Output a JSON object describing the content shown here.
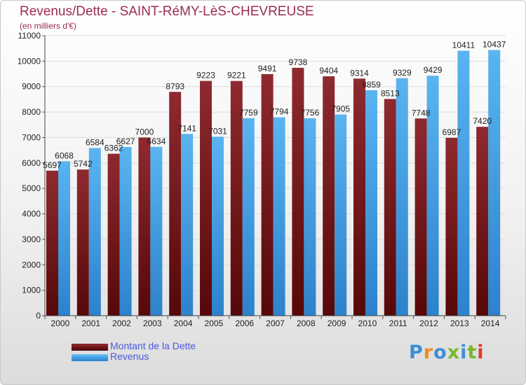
{
  "title": "Revenus/Dette - SAINT-RéMY-LèS-CHEVREUSE",
  "subtitle": "(en milliers d'€)",
  "colors": {
    "dette": "#7a1a1f",
    "revenus": "#4aa3e8",
    "title": "#9b2c52",
    "legend_text": "#4a5ae0"
  },
  "chart_data": {
    "type": "bar",
    "categories": [
      "2000",
      "2001",
      "2002",
      "2003",
      "2004",
      "2005",
      "2006",
      "2007",
      "2008",
      "2009",
      "2010",
      "2011",
      "2012",
      "2013",
      "2014"
    ],
    "series": [
      {
        "name": "Montant de la Dette",
        "values": [
          5697,
          5742,
          6362,
          7000,
          8793,
          9223,
          9221,
          9491,
          9738,
          9404,
          9314,
          8513,
          7748,
          6987,
          7420
        ],
        "labels": [
          "5697",
          "5742",
          "6362",
          "7000",
          "8793",
          "9223",
          "9221",
          "9491",
          "9738",
          "9404",
          "9314",
          "8513",
          "7748",
          "6987",
          "7420"
        ]
      },
      {
        "name": "Revenus",
        "values": [
          6068,
          6584,
          6627,
          6634,
          7141,
          7031,
          7759,
          7794,
          7756,
          7905,
          8859,
          9329,
          9429,
          10411,
          10437
        ],
        "labels": [
          "6068",
          "6584",
          "6627",
          "6634",
          "7141",
          "7031",
          "7759",
          "7794",
          "7756",
          "7905",
          "8859",
          "9329",
          "9429",
          "10411",
          "10437"
        ]
      }
    ],
    "yticks": [
      "0",
      "1000",
      "2000",
      "3000",
      "4000",
      "5000",
      "6000",
      "7000",
      "8000",
      "9000",
      "10000",
      "11000"
    ],
    "ylim": [
      0,
      11000
    ],
    "grid": true,
    "legend_position": "bottom-left"
  },
  "logo": {
    "text": "Proxiti",
    "letter_colors": [
      "#3d8fd6",
      "#f08a1c",
      "#3d8fd6",
      "#79b82a",
      "#3d8fd6",
      "#79b82a",
      "#e03a2a"
    ]
  }
}
